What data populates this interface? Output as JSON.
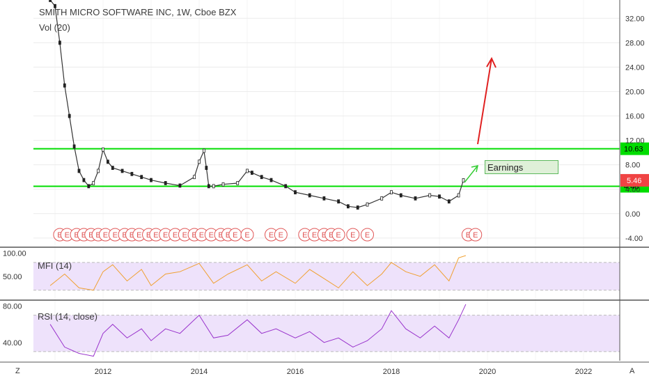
{
  "header": {
    "title": "SMITH MICRO SOFTWARE INC, 1W, Cboe BZX",
    "volume_label": "Vol (20)"
  },
  "annotations": {
    "earnings_box": "Earnings",
    "earnings_marker": "E"
  },
  "corner_buttons": {
    "left": "Z",
    "right": "A"
  },
  "colors": {
    "support_resistance": "#00dd00",
    "up_arrow": "#e02020",
    "green_arrow": "#33cc33",
    "mfi_line": "#f0a030",
    "rsi_line": "#9933cc",
    "oscillator_band": "#eee2fb",
    "earnings_marker": "#e05555",
    "price_label_last": "#f04444",
    "level_label": "#00dd00"
  },
  "chart_data": [
    {
      "type": "candlestick",
      "title": "SMITH MICRO SOFTWARE INC, 1W, Cboe BZX",
      "x_ticks": [
        "2012",
        "2014",
        "2016",
        "2018",
        "2020",
        "2022"
      ],
      "y_ticks": [
        "32.00",
        "28.00",
        "24.00",
        "20.00",
        "16.00",
        "12.00",
        "8.00",
        "4.00",
        "0.00",
        "-4.00"
      ],
      "ylim": [
        -5.5,
        35
      ],
      "horizontal_levels": [
        {
          "value": 10.63,
          "label": "10.63",
          "color": "#00dd00"
        },
        {
          "value": 4.48,
          "label": "4.48",
          "color": "#00dd00"
        }
      ],
      "last_price": {
        "value": 5.46,
        "label": "5.46"
      },
      "series": [
        {
          "name": "price",
          "x": [
            2010.9,
            2011.0,
            2011.1,
            2011.2,
            2011.3,
            2011.4,
            2011.5,
            2011.6,
            2011.7,
            2011.8,
            2011.9,
            2012.0,
            2012.1,
            2012.2,
            2012.4,
            2012.6,
            2012.8,
            2013.0,
            2013.3,
            2013.6,
            2013.9,
            2014.0,
            2014.1,
            2014.15,
            2014.2,
            2014.3,
            2014.5,
            2014.8,
            2015.0,
            2015.1,
            2015.3,
            2015.5,
            2015.8,
            2016.0,
            2016.3,
            2016.6,
            2016.9,
            2017.1,
            2017.3,
            2017.5,
            2017.8,
            2018.0,
            2018.2,
            2018.5,
            2018.8,
            2019.0,
            2019.2,
            2019.4,
            2019.5
          ],
          "values": [
            35,
            34,
            28,
            21,
            16,
            11,
            7,
            5.5,
            4.5,
            5,
            7,
            10.5,
            8.5,
            7.5,
            7,
            6.5,
            6,
            5.5,
            5,
            4.6,
            6,
            8.5,
            10.3,
            7.5,
            4.5,
            4.5,
            4.8,
            5,
            7,
            6.7,
            6,
            5.5,
            4.5,
            3.5,
            3,
            2.5,
            2,
            1.2,
            1,
            1.5,
            2.5,
            3.5,
            3,
            2.5,
            3,
            2.8,
            2,
            3,
            5.46
          ]
        }
      ],
      "earnings_events": [
        2011.1,
        2011.25,
        2011.45,
        2011.6,
        2011.75,
        2011.9,
        2012.05,
        2012.25,
        2012.45,
        2012.6,
        2012.75,
        2012.95,
        2013.1,
        2013.3,
        2013.5,
        2013.7,
        2013.9,
        2014.05,
        2014.25,
        2014.45,
        2014.6,
        2014.75,
        2015.0,
        2015.5,
        2015.7,
        2016.2,
        2016.4,
        2016.6,
        2016.75,
        2016.9,
        2017.2,
        2017.5,
        2019.6,
        2019.75
      ]
    },
    {
      "type": "line",
      "title": "MFI (14)",
      "y_ticks": [
        "100.00",
        "50.00"
      ],
      "ylim": [
        0,
        110
      ],
      "band": [
        20,
        80
      ],
      "series": [
        {
          "name": "MFI (14)",
          "x": [
            2010.9,
            2011.2,
            2011.5,
            2011.8,
            2012.0,
            2012.2,
            2012.5,
            2012.8,
            2013.0,
            2013.3,
            2013.6,
            2014.0,
            2014.3,
            2014.6,
            2015.0,
            2015.3,
            2015.6,
            2016.0,
            2016.3,
            2016.6,
            2016.9,
            2017.2,
            2017.5,
            2017.8,
            2018.0,
            2018.3,
            2018.6,
            2018.9,
            2019.2,
            2019.4,
            2019.55
          ],
          "values": [
            30,
            55,
            25,
            20,
            60,
            75,
            40,
            65,
            30,
            55,
            60,
            78,
            35,
            55,
            75,
            40,
            60,
            35,
            65,
            45,
            25,
            60,
            30,
            55,
            80,
            60,
            50,
            75,
            40,
            90,
            95
          ]
        }
      ]
    },
    {
      "type": "line",
      "title": "RSI (14, close)",
      "y_ticks": [
        "80.00",
        "40.00"
      ],
      "ylim": [
        20,
        85
      ],
      "band": [
        30,
        70
      ],
      "series": [
        {
          "name": "RSI (14, close)",
          "x": [
            2010.9,
            2011.2,
            2011.5,
            2011.8,
            2012.0,
            2012.2,
            2012.5,
            2012.8,
            2013.0,
            2013.3,
            2013.6,
            2014.0,
            2014.3,
            2014.6,
            2015.0,
            2015.3,
            2015.6,
            2016.0,
            2016.3,
            2016.6,
            2016.9,
            2017.2,
            2017.5,
            2017.8,
            2018.0,
            2018.3,
            2018.6,
            2018.9,
            2019.2,
            2019.4,
            2019.55
          ],
          "values": [
            60,
            35,
            28,
            25,
            50,
            60,
            45,
            55,
            42,
            55,
            50,
            70,
            45,
            48,
            65,
            50,
            55,
            45,
            52,
            40,
            45,
            35,
            42,
            55,
            75,
            55,
            45,
            58,
            45,
            65,
            82
          ]
        }
      ]
    }
  ]
}
